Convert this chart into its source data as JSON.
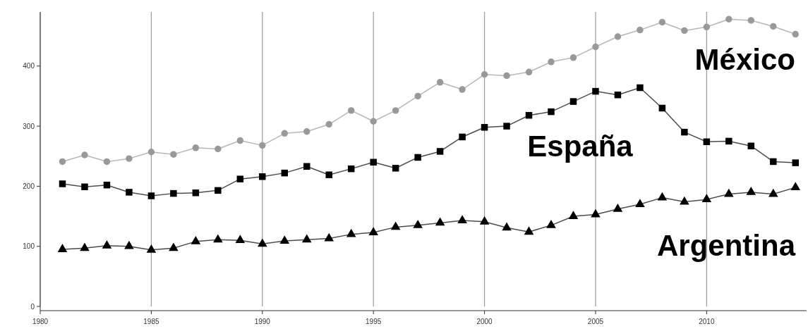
{
  "chart_data": {
    "type": "line",
    "x": [
      1981,
      1982,
      1983,
      1984,
      1985,
      1986,
      1987,
      1988,
      1989,
      1990,
      1991,
      1992,
      1993,
      1994,
      1995,
      1996,
      1997,
      1998,
      1999,
      2000,
      2001,
      2002,
      2003,
      2004,
      2005,
      2006,
      2007,
      2008,
      2009,
      2010,
      2011,
      2012,
      2013,
      2014
    ],
    "series": [
      {
        "name": "México",
        "color": "#999999",
        "marker": "circle",
        "values": [
          241,
          252,
          241,
          246,
          257,
          253,
          264,
          262,
          276,
          268,
          288,
          291,
          303,
          326,
          308,
          326,
          350,
          373,
          361,
          386,
          384,
          390,
          407,
          414,
          432,
          449,
          460,
          473,
          459,
          465,
          478,
          476,
          466,
          453
        ]
      },
      {
        "name": "España",
        "color": "#000000",
        "marker": "square",
        "values": [
          204,
          199,
          202,
          190,
          184,
          188,
          189,
          193,
          212,
          216,
          222,
          233,
          219,
          229,
          240,
          230,
          248,
          258,
          282,
          298,
          300,
          318,
          324,
          341,
          358,
          352,
          364,
          330,
          290,
          274,
          275,
          267,
          241,
          239
        ]
      },
      {
        "name": "Argentina",
        "color": "#000000",
        "marker": "triangle",
        "values": [
          95,
          97,
          101,
          100,
          94,
          97,
          108,
          111,
          110,
          104,
          109,
          111,
          113,
          120,
          123,
          132,
          135,
          139,
          143,
          141,
          131,
          124,
          135,
          150,
          153,
          162,
          170,
          181,
          174,
          178,
          187,
          190,
          187,
          198
        ]
      }
    ],
    "xlim": [
      1980,
      2014.5
    ],
    "xticks": [
      1980,
      1985,
      1990,
      1995,
      2000,
      2005,
      2010
    ],
    "ylim": [
      0,
      490
    ],
    "yticks": [
      0,
      100,
      200,
      300,
      400
    ],
    "grid": "x"
  }
}
